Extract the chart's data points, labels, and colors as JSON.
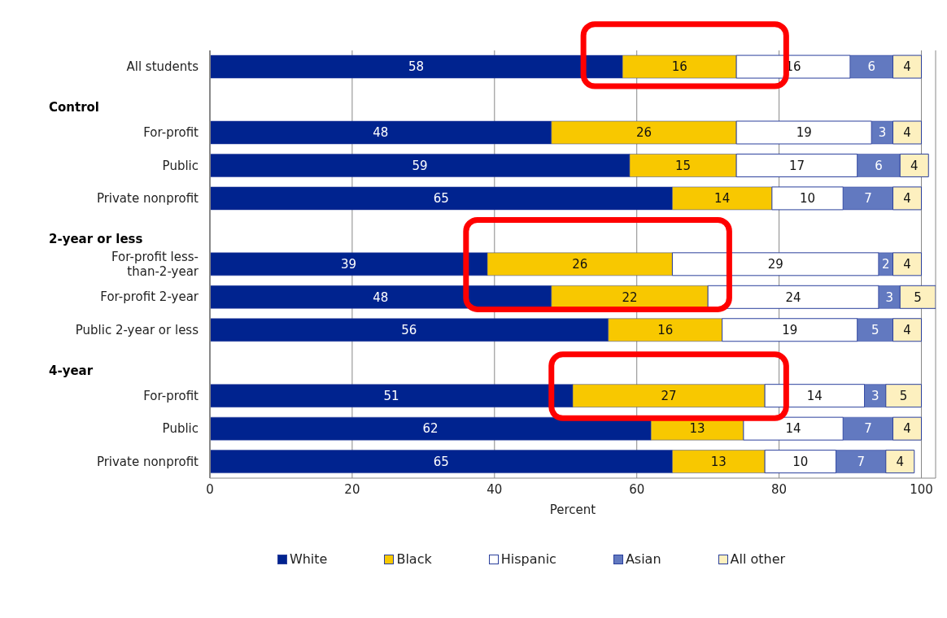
{
  "chart_data": {
    "type": "bar",
    "orientation": "horizontal",
    "stacked": true,
    "categories": [
      "All students",
      null,
      "For-profit",
      "Public",
      "Private nonprofit",
      null,
      "For-profit less-than-2-year",
      "For-profit 2-year",
      "Public 2-year or less",
      null,
      "For-profit",
      "Public",
      "Private nonprofit"
    ],
    "series": [
      {
        "name": "White",
        "color": "#00238f",
        "values": [
          58,
          null,
          48,
          59,
          65,
          null,
          39,
          48,
          56,
          null,
          51,
          62,
          65
        ]
      },
      {
        "name": "Black",
        "color": "#f8c800",
        "values": [
          16,
          null,
          26,
          15,
          14,
          null,
          26,
          22,
          16,
          null,
          27,
          13,
          13
        ]
      },
      {
        "name": "Hispanic",
        "color": "#ffffff",
        "values": [
          16,
          null,
          19,
          17,
          10,
          null,
          29,
          24,
          19,
          null,
          14,
          14,
          10
        ]
      },
      {
        "name": "Asian",
        "color": "#6279c0",
        "values": [
          6,
          null,
          3,
          6,
          7,
          null,
          2,
          3,
          5,
          null,
          3,
          7,
          7
        ]
      },
      {
        "name": "All other",
        "color": "#fdf0bf",
        "values": [
          4,
          null,
          4,
          4,
          4,
          null,
          4,
          5,
          4,
          null,
          5,
          4,
          4
        ]
      }
    ],
    "xlabel": "Percent",
    "xlim": [
      0,
      102
    ],
    "xticks": [
      0,
      20,
      40,
      60,
      80,
      100
    ],
    "annotations": [
      "Control",
      "2-year or less",
      "4-year"
    ],
    "data_labels": true,
    "grid": "x",
    "legend": "bottom"
  }
}
